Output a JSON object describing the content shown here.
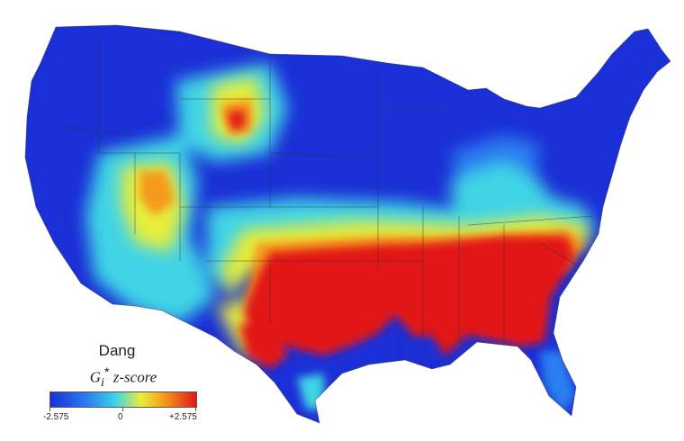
{
  "legend": {
    "title": "Dang",
    "subtitle_symbol": "G",
    "subtitle_sub": "i",
    "subtitle_sup": "*",
    "subtitle_rest": " z-score",
    "tick_min": "-2.575",
    "tick_mid": "0",
    "tick_max": "+2.575"
  },
  "colors": {
    "very_low": "#1a2fd6",
    "low": "#2a7ef0",
    "neutral": "#3fd4e6",
    "mid_high": "#e8ee3a",
    "high": "#f59a1c",
    "very_high": "#e21616",
    "border": "#333333"
  }
}
